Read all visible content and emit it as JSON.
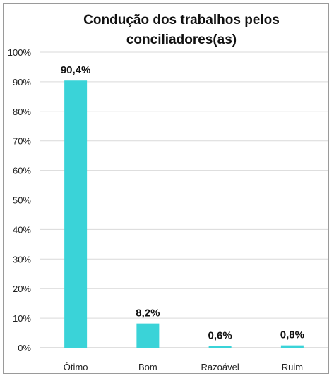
{
  "chart_data": {
    "type": "bar",
    "title_lines": [
      "Condução dos trabalhos pelos",
      "conciliadores(as)"
    ],
    "categories": [
      "Ótimo",
      "Bom",
      "Razoável",
      "Ruim"
    ],
    "values": [
      90.4,
      8.2,
      0.6,
      0.8
    ],
    "data_labels": [
      "90,4%",
      "8,2%",
      "0,6%",
      "0,8%"
    ],
    "ylim": [
      0,
      100
    ],
    "yticks": [
      0,
      10,
      20,
      30,
      40,
      50,
      60,
      70,
      80,
      90,
      100
    ],
    "ytick_labels": [
      "0%",
      "10%",
      "20%",
      "30%",
      "40%",
      "50%",
      "60%",
      "70%",
      "80%",
      "90%",
      "100%"
    ],
    "grid": true,
    "legend": "none",
    "xlabel": "",
    "ylabel": ""
  },
  "colors": {
    "bar": "#3ad3d8",
    "grid": "#d9d9d9",
    "axis": "#bfbfbf"
  }
}
